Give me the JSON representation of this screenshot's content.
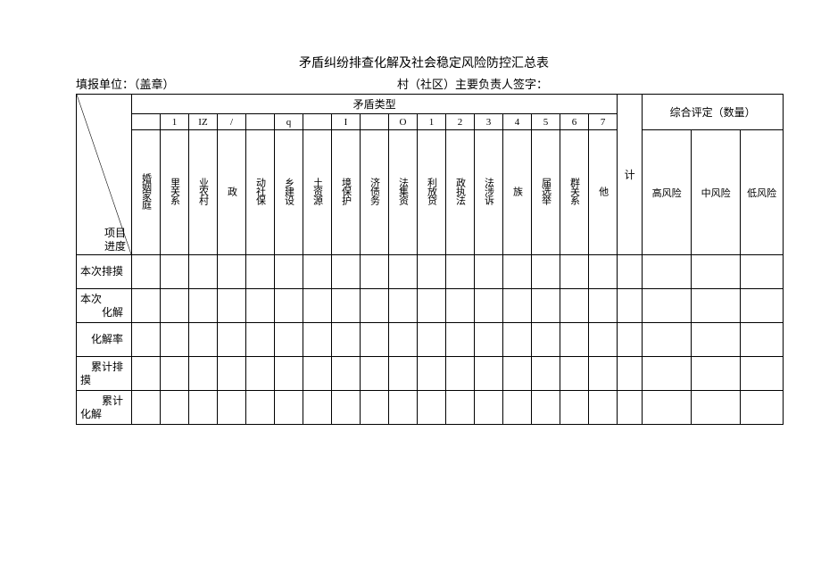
{
  "title": "矛盾纠纷排查化解及社会稳定风险防控汇总表",
  "header": {
    "left": "填报单位：（盖章）",
    "right": "村（社区）主要负责人签字："
  },
  "table": {
    "contradiction_type_label": "矛盾类型",
    "rating_label": "综合评定（数量）",
    "ji_label": "计",
    "project_upper": "项目",
    "project_lower": "进度",
    "col_nums": [
      "",
      "1",
      "IZ",
      "/",
      "",
      "q",
      "",
      "I",
      "",
      "O",
      "1",
      "2",
      "3",
      "4",
      "5",
      "6",
      "7"
    ],
    "categories": [
      "婚姻家庭",
      "里关系",
      "业农村",
      "政",
      "动社保",
      "乡建设",
      "土资源",
      "境保护",
      "济债务",
      "法集资",
      "利放贷",
      "政执法",
      "法涉诉",
      "族",
      "届选举",
      "群关系",
      "他"
    ],
    "rating_cols": [
      "高风险",
      "中风险",
      "低风险"
    ],
    "row_labels": [
      "本次排摸",
      "本次\n　　化解",
      "　化解率",
      "　累计排\n摸",
      "　　累计\n化解"
    ]
  },
  "style": {
    "background": "#ffffff",
    "border_color": "#000000",
    "font_family": "SimSun"
  }
}
